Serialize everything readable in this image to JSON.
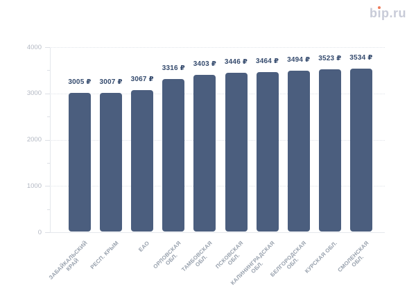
{
  "logo": {
    "prefix": "b",
    "dotless_i": "ı",
    "suffix": "p.ru",
    "text_color": "#c8cbd8",
    "dot_color": "#ed7b5b"
  },
  "chart_data": {
    "type": "bar",
    "title": "",
    "xlabel": "",
    "ylabel": "",
    "categories": [
      "ЗАБАЙКАЛЬСКИЙ КРАЙ",
      "РЕСП. КРЫМ",
      "ЕАО",
      "ОРЛОВСКАЯ ОБЛ.",
      "ТАМБОВСКАЯ ОБЛ.",
      "ПСКОВСКАЯ ОБЛ.",
      "КАЛИНИНГРАДСКАЯ ОБЛ.",
      "БЕЛГОРОДСКАЯ ОБЛ.",
      "КУРСКАЯ ОБЛ.",
      "СМОЛЕНСКАЯ ОБЛ."
    ],
    "category_display": [
      "ЗАБАЙКАЛЬСКИЙ\nКРАЙ",
      "РЕСП. КРЫМ",
      "ЕАО",
      "ОРЛОВСКАЯ\nОБЛ.",
      "ТАМБОВСКАЯ\nОБЛ.",
      "ПСКОВСКАЯ\nОБЛ.",
      "КАЛИНИНГРАДСКАЯ\nОБЛ.",
      "БЕЛГОРОДСКАЯ\nОБЛ.",
      "КУРСКАЯ ОБЛ.",
      "СМОЛЕНСКАЯ\nОБЛ."
    ],
    "values": [
      3005,
      3007,
      3067,
      3316,
      3403,
      3446,
      3464,
      3494,
      3523,
      3534
    ],
    "value_labels": [
      "3005 ₽",
      "3007 ₽",
      "3067 ₽",
      "3316 ₽",
      "3403 ₽",
      "3446 ₽",
      "3464 ₽",
      "3494 ₽",
      "3523 ₽",
      "3534 ₽"
    ],
    "currency": "₽",
    "ylim": [
      0,
      4000
    ],
    "yticks": [
      0,
      1000,
      2000,
      3000,
      4000
    ],
    "ytick_labels": [
      "0",
      "1000",
      "2000",
      "3000",
      "4000"
    ],
    "minor_ytick_step": 500,
    "grid": "horizontal dotted lines at major y ticks",
    "legend": "none",
    "colors": {
      "bar": "#4b5e7e",
      "value_label": "#344a6d",
      "y_tick_label": "#b3b8c3",
      "x_tick_label": "#98a1ad",
      "grid_line": "#dfe3e9",
      "axis_line": "#e4e7ec",
      "background": "#ffffff"
    }
  }
}
